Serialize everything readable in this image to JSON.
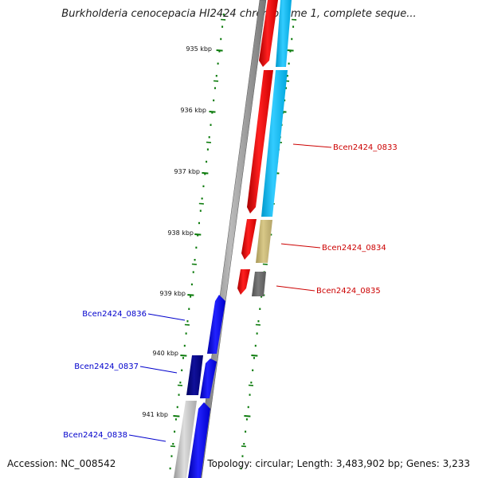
{
  "title": "Burkholderia cenocepacia HI2424 chromosome 1, complete seque...",
  "footer": {
    "accession": "Accession: NC_008542",
    "summary": "Topology: circular; Length: 3,483,902 bp; Genes: 3,233"
  },
  "ticks": [
    {
      "label": "935 kbp",
      "position_kbp": 935
    },
    {
      "label": "936 kbp",
      "position_kbp": 936
    },
    {
      "label": "937 kbp",
      "position_kbp": 937
    },
    {
      "label": "938 kbp",
      "position_kbp": 938
    },
    {
      "label": "939 kbp",
      "position_kbp": 939
    },
    {
      "label": "940 kbp",
      "position_kbp": 940
    },
    {
      "label": "941 kbp",
      "position_kbp": 941
    }
  ],
  "gene_labels": [
    {
      "text": "Bcen2424_0833",
      "color": "#cc0000",
      "strand": "forward"
    },
    {
      "text": "Bcen2424_0834",
      "color": "#cc0000",
      "strand": "forward"
    },
    {
      "text": "Bcen2424_0835",
      "color": "#cc0000",
      "strand": "forward"
    },
    {
      "text": "Bcen2424_0836",
      "color": "#0000cc",
      "strand": "reverse"
    },
    {
      "text": "Bcen2424_0837",
      "color": "#0000cc",
      "strand": "reverse"
    },
    {
      "text": "Bcen2424_0838",
      "color": "#0000cc",
      "strand": "reverse"
    }
  ],
  "colors": {
    "forward_gene": "#ee0000",
    "reverse_gene": "#0000ee",
    "forward_cds": "#00bbee",
    "reverse_cds": "#000080",
    "backbone": "#888888",
    "tick": "#0a7a0a",
    "khaki": "#c8b878",
    "gray_feature": "#6e6e6e"
  }
}
